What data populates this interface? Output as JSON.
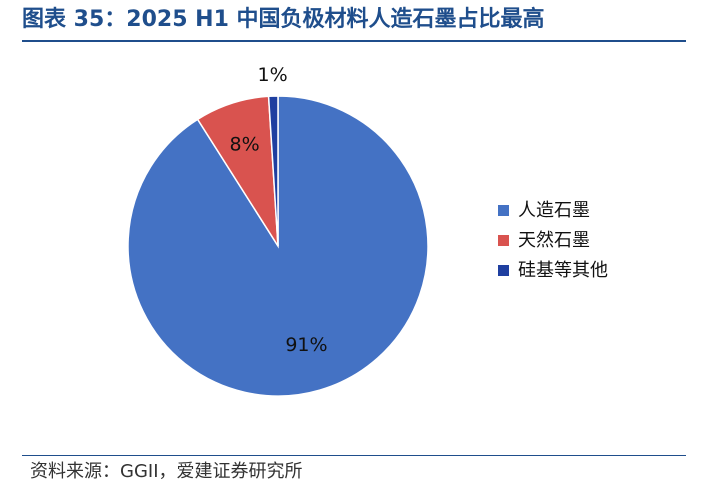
{
  "header": {
    "title": "图表 35：2025 H1 中国负极材料人造石墨占比最高"
  },
  "footer": {
    "source": "资料来源：GGII，爱建证券研究所"
  },
  "chart_data": {
    "type": "pie",
    "title": "图表 35：2025 H1 中国负极材料人造石墨占比最高",
    "legend_position": "right",
    "slices": [
      {
        "name": "人造石墨",
        "value": 91,
        "label": "91%",
        "color": "#4472c4"
      },
      {
        "name": "天然石墨",
        "value": 8,
        "label": "8%",
        "color": "#d9534f"
      },
      {
        "name": "硅基等其他",
        "value": 1,
        "label": "1%",
        "color": "#1f3fa0"
      }
    ]
  }
}
